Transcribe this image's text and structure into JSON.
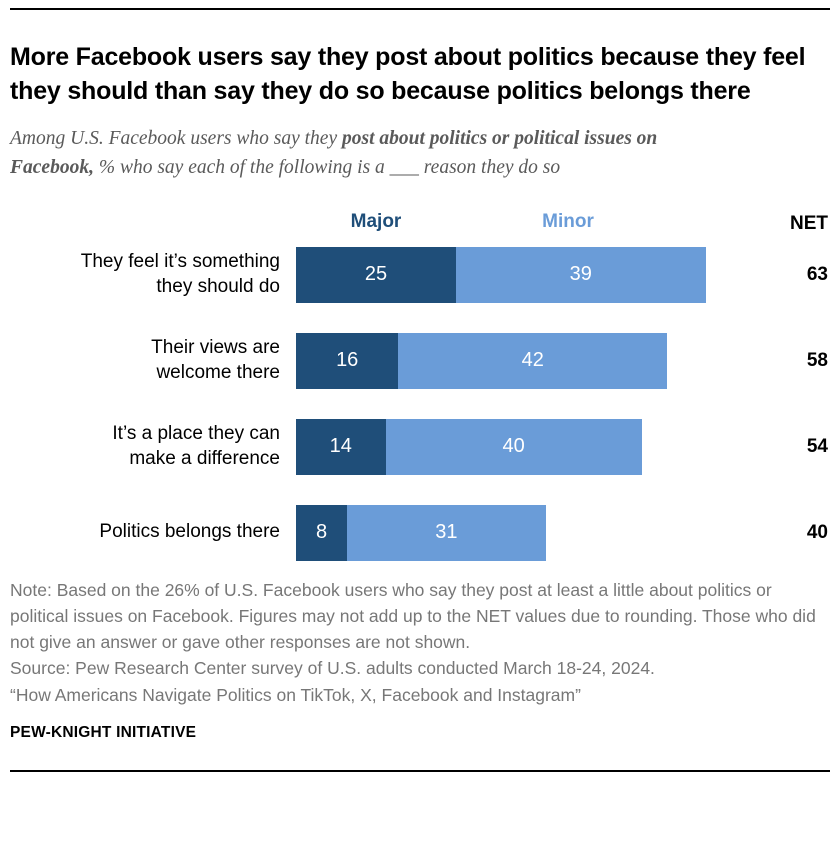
{
  "header": {
    "title": "More Facebook users say they post about politics because they feel they should than say they do so because politics belongs there"
  },
  "subtitle": {
    "part1": "Among U.S. Facebook users who say they ",
    "part2_bold": "post about politics or political issues on Facebook,",
    "part3": " % who say each of the following is a ___ reason they do so"
  },
  "chart_data": {
    "type": "bar",
    "orientation": "horizontal",
    "stacked": true,
    "title": "More Facebook users say they post about politics because they feel they should than say they do so because politics belongs there",
    "categories": [
      "They feel it’s something\nthey should do",
      "Their views are\nwelcome there",
      "It’s a place they can\nmake a difference",
      "Politics belongs there"
    ],
    "series": [
      {
        "name": "Major",
        "color": "#1F4E79",
        "values": [
          25,
          16,
          14,
          8
        ]
      },
      {
        "name": "Minor",
        "color": "#6A9CD8",
        "values": [
          39,
          42,
          40,
          31
        ]
      }
    ],
    "net_label": "NET",
    "net_values": [
      63,
      58,
      54,
      40
    ],
    "xlim": [
      0,
      100
    ],
    "grid": false,
    "legend_position": "top"
  },
  "notes": {
    "note": "Note: Based on the 26% of U.S. Facebook users who say they post at least a little about politics or political issues on Facebook. Figures may not add up to the NET values due to rounding. Those who did not give an answer or gave other responses are not shown.",
    "source": "Source: Pew Research Center survey of U.S. adults conducted March 18-24, 2024.",
    "report": "“How Americans Navigate Politics on TikTok, X, Facebook and Instagram”"
  },
  "footer": {
    "brand": "PEW-KNIGHT INITIATIVE"
  },
  "colors": {
    "major": "#1F4E79",
    "minor": "#6A9CD8"
  }
}
